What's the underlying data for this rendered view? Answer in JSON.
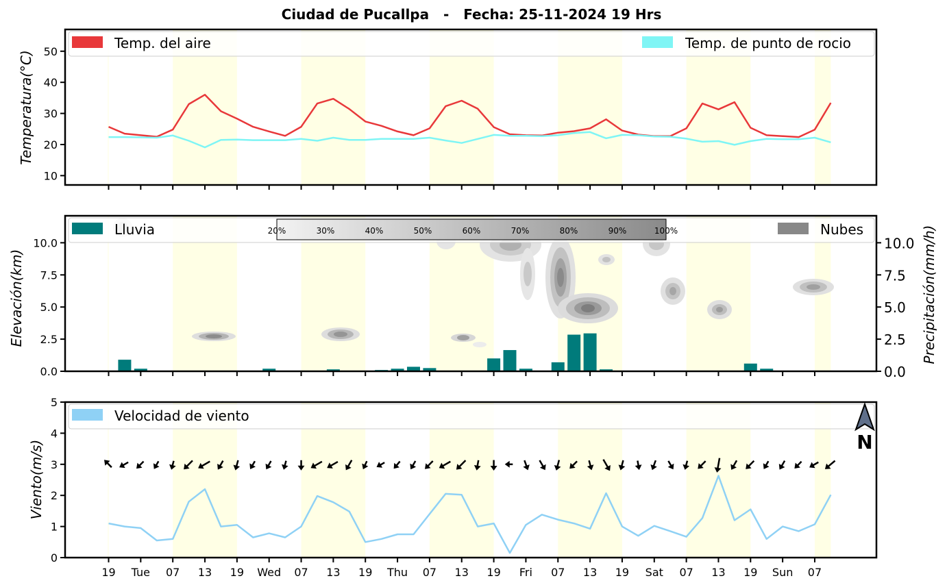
{
  "title": "Ciudad de Pucallpa   -   Fecha: 25-11-2024 19 Hrs",
  "colors": {
    "temp_air": "#e8383a",
    "dew_point": "#7ff5f5",
    "rain": "#007b7b",
    "clouds": "#888888",
    "wind": "#8fd1f5",
    "daytime_band": "#ffffe0"
  },
  "x_tick_labels": [
    "19",
    "Tue",
    "07",
    "13",
    "19",
    "Wed",
    "07",
    "13",
    "19",
    "Thu",
    "07",
    "13",
    "19",
    "Fri",
    "07",
    "13",
    "19",
    "Sat",
    "07",
    "13",
    "19",
    "Sun",
    "07"
  ],
  "chart_data": [
    {
      "type": "line",
      "ylabel": "Temperatura(°C)",
      "yticks": [
        10,
        20,
        30,
        40,
        50
      ],
      "ylim": [
        7,
        57
      ],
      "legend_location": "top (left and right)",
      "series": [
        {
          "name": "Temp. del aire",
          "color": "#e8383a",
          "values": [
            25.7,
            23.5,
            23.0,
            22.5,
            24.8,
            33.0,
            36.0,
            30.7,
            28.3,
            25.7,
            24.2,
            22.8,
            25.7,
            33.2,
            34.7,
            31.4,
            27.4,
            26.0,
            24.2,
            23.0,
            25.2,
            32.3,
            34.1,
            31.5,
            25.6,
            23.3,
            23.0,
            22.9,
            23.8,
            24.3,
            25.2,
            28.1,
            24.5,
            23.2,
            22.7,
            22.7,
            25.2,
            33.2,
            31.3,
            33.6,
            25.4,
            23.0,
            22.7,
            22.4,
            24.8,
            33.4
          ]
        },
        {
          "name": "Temp. de punto de rocio",
          "color": "#7ff5f5",
          "values": [
            22.4,
            22.4,
            22.3,
            22.2,
            22.9,
            21.2,
            19.1,
            21.5,
            21.6,
            21.4,
            21.4,
            21.4,
            21.8,
            21.2,
            22.2,
            21.5,
            21.5,
            21.8,
            21.8,
            21.8,
            22.2,
            21.3,
            20.5,
            21.8,
            23.1,
            22.8,
            22.8,
            22.7,
            23.0,
            23.7,
            24.0,
            22.0,
            23.1,
            23.0,
            22.6,
            22.5,
            21.9,
            20.9,
            21.1,
            19.9,
            21.1,
            21.8,
            21.7,
            21.7,
            22.2,
            20.7
          ]
        }
      ]
    },
    {
      "type": "bar",
      "ylabel": "Elevación(km)",
      "ylabel_right": "Precipitación(mm/h)",
      "yticks": [
        0.0,
        2.5,
        5.0,
        7.5,
        10.0
      ],
      "ylim": [
        0,
        12.1
      ],
      "legend_location": "top (left and right)",
      "series": [
        {
          "name": "Lluvia",
          "color": "#007b7b",
          "values": [
            0,
            0.9,
            0.2,
            0,
            0,
            0,
            0,
            0,
            0,
            0,
            0.2,
            0.05,
            0,
            0,
            0.15,
            0.05,
            0,
            0.1,
            0.2,
            0.35,
            0.25,
            0,
            0,
            0,
            1.0,
            1.65,
            0.2,
            0,
            0.7,
            2.85,
            2.95,
            0.15,
            0,
            0,
            0,
            0,
            0,
            0,
            0,
            0,
            0.6,
            0.2,
            0,
            0,
            0,
            0
          ]
        },
        {
          "name": "Nubes",
          "color": "#888888"
        }
      ],
      "colorbar_labels": [
        "20%",
        "30%",
        "40%",
        "50%",
        "60%",
        "70%",
        "80%",
        "90%",
        "100%"
      ]
    },
    {
      "type": "line",
      "ylabel": "Viento(m/s)",
      "yticks": [
        0,
        1,
        2,
        3,
        4,
        5
      ],
      "ylim": [
        0,
        5
      ],
      "legend_location": "top-left",
      "north_label": "N",
      "series": [
        {
          "name": "Velocidad de viento",
          "color": "#8fd1f5",
          "values": [
            1.1,
            1.0,
            0.95,
            0.55,
            0.6,
            1.8,
            2.2,
            1.0,
            1.05,
            0.65,
            0.78,
            0.65,
            1.0,
            1.98,
            1.78,
            1.48,
            0.5,
            0.6,
            0.75,
            0.75,
            1.4,
            2.05,
            2.02,
            1.0,
            1.1,
            0.15,
            1.05,
            1.38,
            1.22,
            1.1,
            0.93,
            2.07,
            1.0,
            0.7,
            1.02,
            0.85,
            0.67,
            1.27,
            2.63,
            1.2,
            1.55,
            0.6,
            1.0,
            0.85,
            1.07,
            2.02
          ]
        }
      ]
    }
  ]
}
